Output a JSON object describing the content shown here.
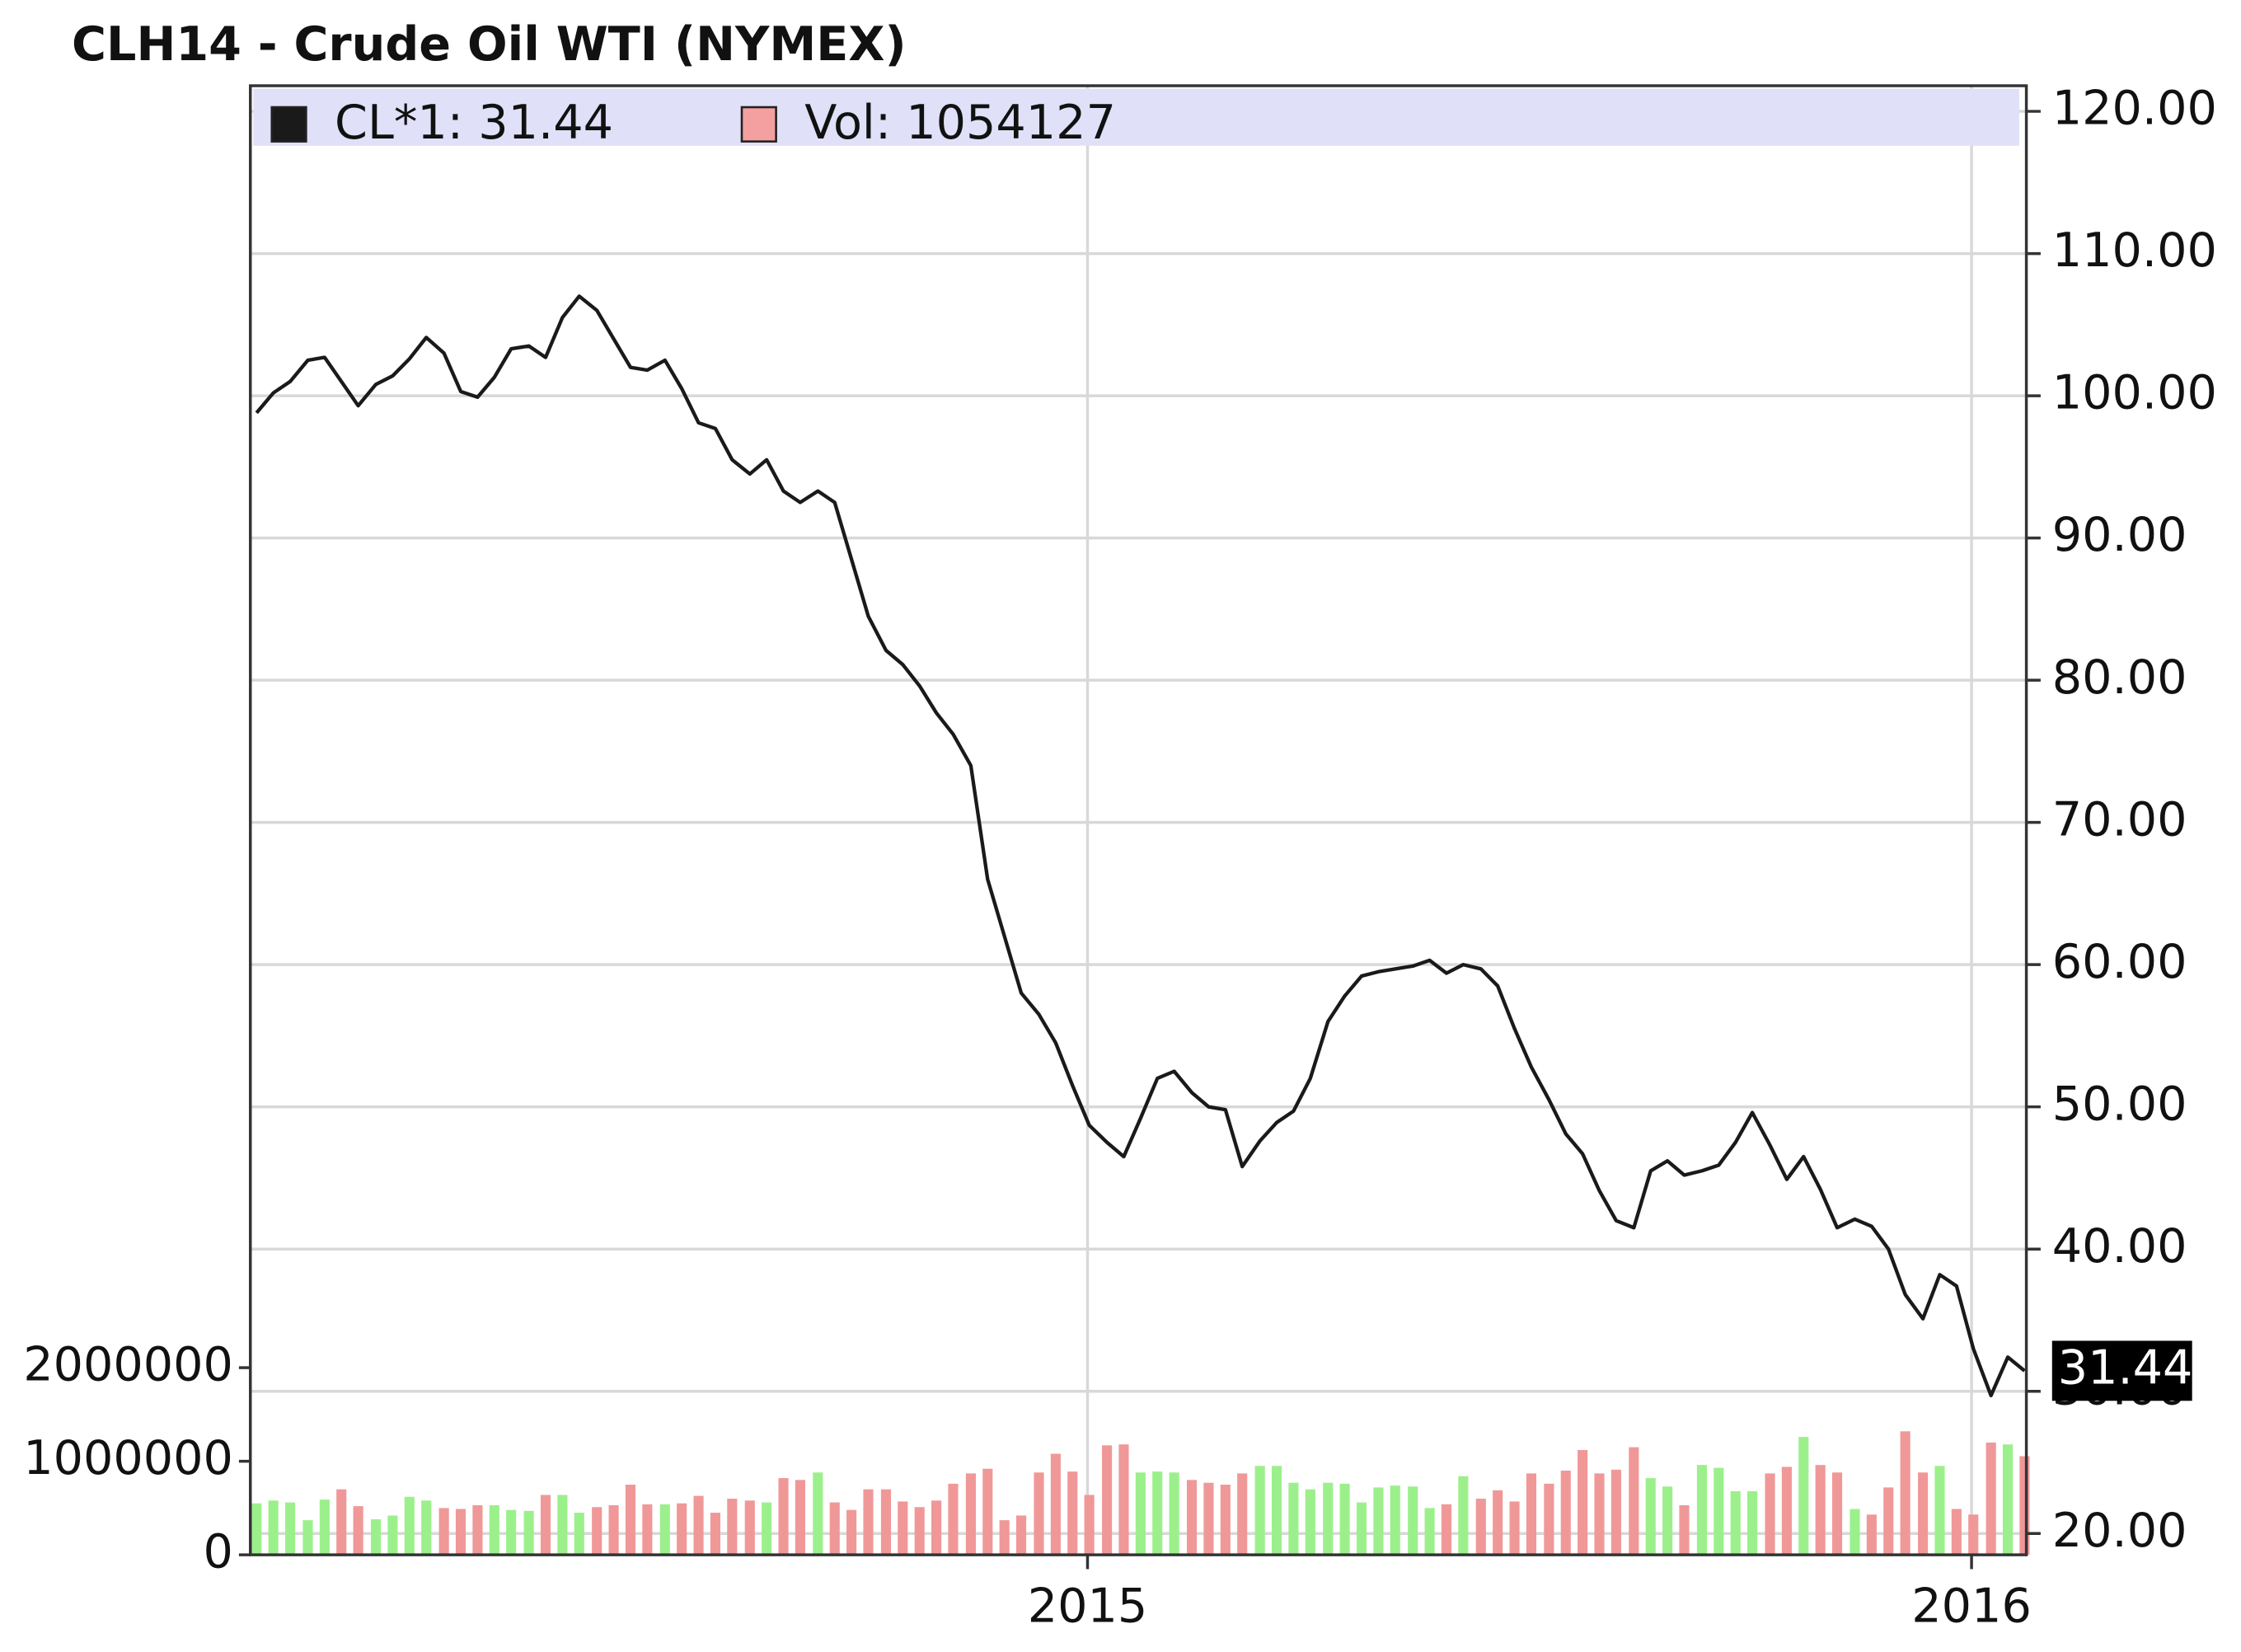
{
  "chart_data": {
    "type": "line",
    "title": "CLH14 - Crude Oil WTI (NYMEX)",
    "x": [
      2014.06,
      2014.079,
      2014.098,
      2014.118,
      2014.137,
      2014.156,
      2014.175,
      2014.195,
      2014.214,
      2014.233,
      2014.252,
      2014.272,
      2014.291,
      2014.31,
      2014.329,
      2014.348,
      2014.368,
      2014.387,
      2014.406,
      2014.425,
      2014.445,
      2014.464,
      2014.483,
      2014.502,
      2014.522,
      2014.541,
      2014.56,
      2014.579,
      2014.598,
      2014.618,
      2014.637,
      2014.656,
      2014.675,
      2014.695,
      2014.714,
      2014.733,
      2014.752,
      2014.772,
      2014.791,
      2014.81,
      2014.829,
      2014.848,
      2014.868,
      2014.887,
      2014.906,
      2014.925,
      2014.945,
      2014.964,
      2014.983,
      2015.002,
      2015.022,
      2015.041,
      2015.06,
      2015.079,
      2015.098,
      2015.118,
      2015.137,
      2015.156,
      2015.175,
      2015.195,
      2015.214,
      2015.233,
      2015.252,
      2015.272,
      2015.291,
      2015.31,
      2015.329,
      2015.348,
      2015.368,
      2015.387,
      2015.406,
      2015.425,
      2015.445,
      2015.464,
      2015.483,
      2015.502,
      2015.522,
      2015.541,
      2015.56,
      2015.579,
      2015.598,
      2015.618,
      2015.637,
      2015.656,
      2015.675,
      2015.695,
      2015.714,
      2015.733,
      2015.752,
      2015.772,
      2015.791,
      2015.81,
      2015.829,
      2015.848,
      2015.868,
      2015.887,
      2015.906,
      2015.925,
      2015.945,
      2015.964,
      2015.983,
      2016.002,
      2016.022,
      2016.041,
      2016.06
    ],
    "series": [
      {
        "name": "CL*1: 31.44",
        "color": "#1a1a1a",
        "axis": "y",
        "values": [
          98.8,
          100.2,
          101,
          102.5,
          102.7,
          101,
          99.3,
          100.8,
          101.4,
          102.6,
          104.1,
          103,
          100.3,
          99.9,
          101.3,
          103.3,
          103.5,
          102.7,
          105.5,
          107,
          106,
          104,
          102,
          101.8,
          102.5,
          100.5,
          98.1,
          97.7,
          95.5,
          94.5,
          95.5,
          93.3,
          92.5,
          93.3,
          92.5,
          88.5,
          84.5,
          82.1,
          81.1,
          79.6,
          77.7,
          76.2,
          74,
          66,
          62,
          58,
          56.5,
          54.5,
          51.5,
          48.7,
          47.5,
          46.5,
          49.2,
          52,
          52.5,
          51,
          50,
          49.8,
          45.8,
          47.6,
          48.9,
          49.7,
          52,
          56,
          57.8,
          59.2,
          59.5,
          59.7,
          59.9,
          60.3,
          59.4,
          60,
          59.7,
          58.5,
          55.5,
          52.8,
          50.5,
          48.1,
          46.7,
          44.1,
          42,
          41.5,
          45.5,
          46.2,
          45.2,
          45.5,
          45.9,
          47.5,
          49.6,
          47.3,
          44.9,
          46.5,
          44.2,
          41.5,
          42.1,
          41.6,
          40,
          36.8,
          35.1,
          38.2,
          37.4,
          33,
          29.7,
          32.4,
          31.44
        ]
      },
      {
        "name": "Vol: 1054127",
        "color": "#f4a0a0",
        "axis": "y2",
        "type": "bar",
        "up_color": "#9cf08c",
        "down_color": "#f09898",
        "values": [
          550000,
          580000,
          560000,
          370000,
          590000,
          700000,
          520000,
          380000,
          420000,
          620000,
          580000,
          500000,
          490000,
          530000,
          530000,
          480000,
          470000,
          640000,
          640000,
          450000,
          510000,
          530000,
          750000,
          540000,
          540000,
          550000,
          630000,
          450000,
          600000,
          580000,
          560000,
          820000,
          800000,
          880000,
          560000,
          480000,
          700000,
          700000,
          570000,
          510000,
          580000,
          760000,
          870000,
          920000,
          370000,
          420000,
          880000,
          1080000,
          890000,
          640000,
          1170000,
          1180000,
          880000,
          890000,
          880000,
          800000,
          770000,
          750000,
          870000,
          950000,
          950000,
          770000,
          700000,
          770000,
          760000,
          560000,
          720000,
          740000,
          730000,
          500000,
          540000,
          840000,
          600000,
          690000,
          570000,
          870000,
          760000,
          900000,
          1120000,
          870000,
          910000,
          1150000,
          820000,
          730000,
          530000,
          960000,
          930000,
          680000,
          680000,
          870000,
          940000,
          1260000,
          960000,
          880000,
          490000,
          430000,
          720000,
          1320000,
          880000,
          950000,
          490000,
          430000,
          1200000,
          1180000,
          1054127
        ]
      }
    ],
    "xlim": [
      2014.053,
      2016.062
    ],
    "xticks": [
      2015,
      2016
    ],
    "ylim": [
      18.5,
      121.8
    ],
    "yticks": [
      {
        "value": 20,
        "label": "20.00"
      },
      {
        "value": 30,
        "label": "30.00"
      },
      {
        "value": 40,
        "label": "40.00"
      },
      {
        "value": 50,
        "label": "50.00"
      },
      {
        "value": 60,
        "label": "60.00"
      },
      {
        "value": 70,
        "label": "70.00"
      },
      {
        "value": 80,
        "label": "80.00"
      },
      {
        "value": 90,
        "label": "90.00"
      },
      {
        "value": 100,
        "label": "100.00"
      },
      {
        "value": 110,
        "label": "110.00"
      },
      {
        "value": 120,
        "label": "120.00"
      }
    ],
    "y2lim": [
      0,
      15700000
    ],
    "y2ticks": [
      0,
      1000000,
      2000000
    ],
    "grid": true,
    "legend": "top-left"
  }
}
